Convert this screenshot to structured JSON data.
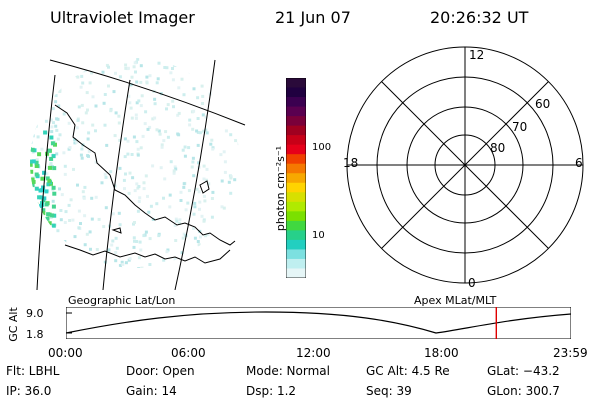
{
  "header": {
    "title": "Ultraviolet Imager",
    "date": "21 Jun 07",
    "time": "20:26:32 UT"
  },
  "colorbar": {
    "unit_label": "photon cm⁻²s⁻¹",
    "tick_labels": [
      "100",
      "10"
    ],
    "colors": [
      "#2a0a3a",
      "#200040",
      "#3b0050",
      "#5a0050",
      "#7a003a",
      "#a00020",
      "#c80018",
      "#e6001a",
      "#f04000",
      "#f57800",
      "#f7a800",
      "#ffd400",
      "#d7e000",
      "#b0ea00",
      "#7be000",
      "#40d840",
      "#27d08a",
      "#22cfc0",
      "#7ce0e0",
      "#bfeff0",
      "#e6f6f7"
    ]
  },
  "map_panel": {
    "caption": "Geographic Lat/Lon"
  },
  "polar_plot": {
    "caption": "Apex MLat/MLT",
    "mlt_labels": [
      "12",
      "18",
      "6",
      "0"
    ],
    "mlat_labels": [
      "60",
      "70",
      "80"
    ]
  },
  "altitude_strip": {
    "axis_label": "GC Alt",
    "ticks": [
      "9.0",
      "1.8"
    ],
    "time_ticks": [
      "00:00",
      "06:00",
      "12:00",
      "18:00",
      "23:59"
    ],
    "current_time_fraction": 0.852,
    "marker_color": "#e00000"
  },
  "info": {
    "filter": "Flt: LBHL",
    "ip": "IP: 36.0",
    "door": "Door: Open",
    "gain": "Gain: 14",
    "mode": "Mode: Normal",
    "dsp": "Dsp:    1.2",
    "gc_alt": "GC Alt: 4.5 Re",
    "seq": "Seq: 39",
    "glat": "GLat: −43.2",
    "glon": "GLon: 300.7"
  }
}
